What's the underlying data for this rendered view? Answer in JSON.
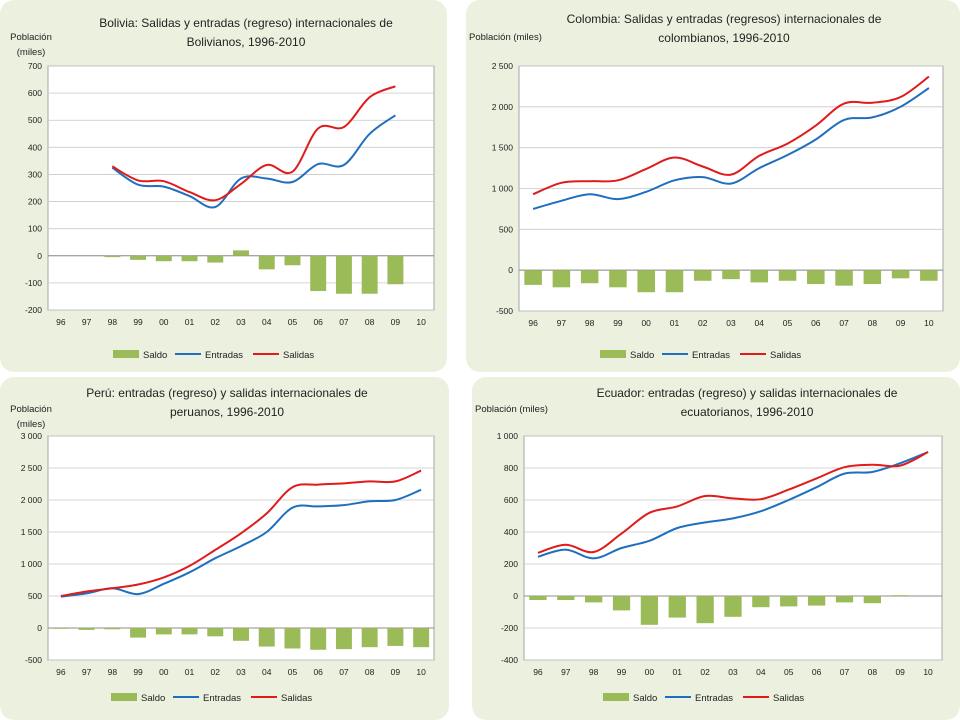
{
  "legend": {
    "saldo": "Saldo",
    "entradas": "Entradas",
    "salidas": "Salidas"
  },
  "colors": {
    "panel_bg": "#ebf1de",
    "saldo": "#9bbb59",
    "entradas": "#1f6fbf",
    "salidas": "#e01b1b",
    "grid": "#c8c8c8"
  },
  "chart_data": [
    {
      "type": "bar+line",
      "title": "Bolivia: Salidas y entradas (regreso) internacionales de Bolivianos, 1996-2010",
      "title_lines": [
        "Bolivia: Salidas y entradas (regreso) internacionales de",
        "Bolivianos, 1996-2010"
      ],
      "ylabel": "Población (miles)",
      "ylabel_lines": [
        "Población",
        "(miles)"
      ],
      "ylim": [
        -200,
        700
      ],
      "yticks": [
        -200,
        -100,
        0,
        100,
        200,
        300,
        400,
        500,
        600,
        700
      ],
      "ytick_labels": [
        "-200",
        "-100",
        "0",
        "100",
        "200",
        "300",
        "400",
        "500",
        "600",
        "700"
      ],
      "categories": [
        "96",
        "97",
        "98",
        "99",
        "00",
        "01",
        "02",
        "03",
        "04",
        "05",
        "06",
        "07",
        "08",
        "09",
        "10"
      ],
      "series": [
        {
          "name": "Saldo",
          "type": "bar",
          "values": [
            null,
            null,
            -5,
            -15,
            -20,
            -20,
            -25,
            20,
            -50,
            -35,
            -130,
            -140,
            -140,
            -105,
            null
          ]
        },
        {
          "name": "Entradas",
          "type": "line",
          "values": [
            null,
            null,
            325,
            262,
            255,
            220,
            180,
            285,
            285,
            272,
            338,
            335,
            450,
            518,
            null
          ]
        },
        {
          "name": "Salidas",
          "type": "line",
          "values": [
            null,
            null,
            330,
            278,
            275,
            235,
            205,
            265,
            335,
            310,
            470,
            475,
            585,
            625,
            null
          ]
        }
      ]
    },
    {
      "type": "bar+line",
      "title": "Colombia: Salidas y entradas (regresos) internacionales de colombianos, 1996-2010",
      "title_lines": [
        "Colombia: Salidas y entradas (regresos) internacionales de",
        "colombianos, 1996-2010"
      ],
      "ylabel": "Población (miles)",
      "ylabel_lines": [
        "Población (miles)"
      ],
      "ylim": [
        -500,
        2500
      ],
      "yticks": [
        -500,
        0,
        500,
        1000,
        1500,
        2000,
        2500
      ],
      "ytick_labels": [
        "-500",
        "0",
        "500",
        "1 000",
        "1 500",
        "2 000",
        "2 500"
      ],
      "categories": [
        "96",
        "97",
        "98",
        "99",
        "00",
        "01",
        "02",
        "03",
        "04",
        "05",
        "06",
        "07",
        "08",
        "09",
        "10"
      ],
      "series": [
        {
          "name": "Saldo",
          "type": "bar",
          "values": [
            -180,
            -210,
            -160,
            -210,
            -270,
            -270,
            -130,
            -110,
            -150,
            -130,
            -170,
            -190,
            -170,
            -100,
            -130
          ]
        },
        {
          "name": "Entradas",
          "type": "line",
          "values": [
            750,
            850,
            930,
            870,
            960,
            1100,
            1140,
            1060,
            1250,
            1410,
            1600,
            1840,
            1870,
            2000,
            2230
          ]
        },
        {
          "name": "Salidas",
          "type": "line",
          "values": [
            930,
            1070,
            1090,
            1100,
            1240,
            1380,
            1270,
            1170,
            1400,
            1550,
            1770,
            2040,
            2050,
            2120,
            2370
          ]
        }
      ]
    },
    {
      "type": "bar+line",
      "title": "Perú: entradas (regreso) y salidas internacionales de peruanos, 1996-2010",
      "title_lines": [
        "Perú: entradas (regreso) y salidas internacionales de",
        "peruanos, 1996-2010"
      ],
      "ylabel": "Población (miles)",
      "ylabel_lines": [
        "Población",
        "(miles)"
      ],
      "ylim": [
        -500,
        3000
      ],
      "yticks": [
        -500,
        0,
        500,
        1000,
        1500,
        2000,
        2500,
        3000
      ],
      "ytick_labels": [
        "-500",
        "0",
        "500",
        "1 000",
        "1 500",
        "2 000",
        "2 500",
        "3 000"
      ],
      "categories": [
        "96",
        "97",
        "98",
        "99",
        "00",
        "01",
        "02",
        "03",
        "04",
        "05",
        "06",
        "07",
        "08",
        "09",
        "10"
      ],
      "series": [
        {
          "name": "Saldo",
          "type": "bar",
          "values": [
            -10,
            -30,
            -20,
            -150,
            -100,
            -100,
            -130,
            -200,
            -290,
            -320,
            -340,
            -330,
            -300,
            -280,
            -300
          ]
        },
        {
          "name": "Entradas",
          "type": "line",
          "values": [
            490,
            540,
            620,
            530,
            690,
            870,
            1090,
            1280,
            1500,
            1880,
            1900,
            1920,
            1980,
            2000,
            2160
          ]
        },
        {
          "name": "Salidas",
          "type": "line",
          "values": [
            500,
            570,
            620,
            680,
            790,
            970,
            1220,
            1480,
            1790,
            2200,
            2240,
            2260,
            2290,
            2290,
            2460
          ]
        }
      ]
    },
    {
      "type": "bar+line",
      "title": "Ecuador: entradas (regreso) y salidas internacionales de ecuatorianos, 1996-2010",
      "title_lines": [
        "Ecuador: entradas (regreso) y salidas internacionales de",
        "ecuatorianos, 1996-2010"
      ],
      "ylabel": "Población (miles)",
      "ylabel_lines": [
        "Población (miles)"
      ],
      "ylim": [
        -400,
        1000
      ],
      "yticks": [
        -400,
        -200,
        0,
        200,
        400,
        600,
        800,
        1000
      ],
      "ytick_labels": [
        "-400",
        "-200",
        "0",
        "200",
        "400",
        "600",
        "800",
        "1 000"
      ],
      "categories": [
        "96",
        "97",
        "98",
        "99",
        "00",
        "01",
        "02",
        "03",
        "04",
        "05",
        "06",
        "07",
        "08",
        "09",
        "10"
      ],
      "series": [
        {
          "name": "Saldo",
          "type": "bar",
          "values": [
            -25,
            -25,
            -40,
            -90,
            -180,
            -135,
            -170,
            -130,
            -70,
            -65,
            -60,
            -40,
            -45,
            5,
            null
          ]
        },
        {
          "name": "Entradas",
          "type": "line",
          "values": [
            245,
            290,
            235,
            300,
            345,
            425,
            460,
            485,
            530,
            600,
            680,
            765,
            775,
            830,
            900
          ]
        },
        {
          "name": "Salidas",
          "type": "line",
          "values": [
            270,
            320,
            275,
            390,
            520,
            560,
            625,
            610,
            605,
            665,
            735,
            805,
            820,
            815,
            900
          ]
        }
      ]
    }
  ]
}
